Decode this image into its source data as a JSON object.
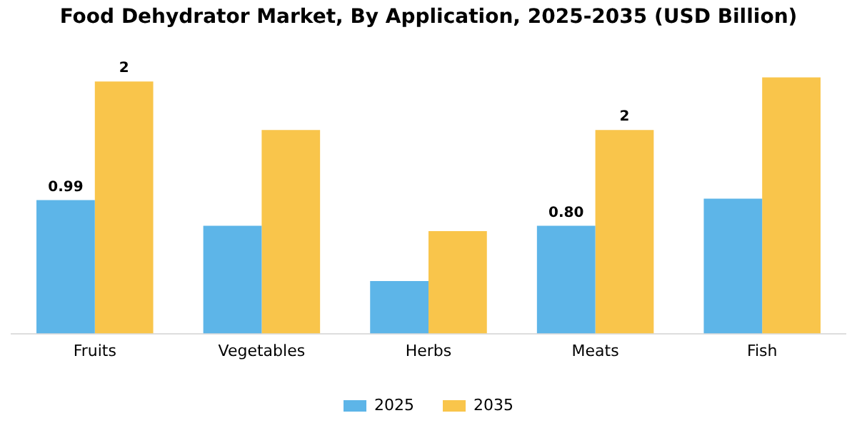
{
  "chart_data": {
    "type": "bar",
    "title": "Food Dehydrator Market, By Application, 2025-2035 (USD Billion)",
    "categories": [
      "Fruits",
      "Vegetables",
      "Herbs",
      "Meats",
      "Fish"
    ],
    "series": [
      {
        "name": "2025",
        "color": "#5db5e8",
        "values": [
          0.99,
          0.8,
          0.39,
          0.8,
          1.0
        ],
        "value_labels": [
          "0.99",
          null,
          null,
          "0.80",
          null
        ]
      },
      {
        "name": "2035",
        "color": "#f9c54b",
        "values": [
          1.87,
          1.51,
          0.76,
          1.51,
          1.9
        ],
        "value_labels": [
          "2",
          null,
          null,
          "2",
          null
        ]
      }
    ],
    "legend": "bottom",
    "grid": false
  }
}
